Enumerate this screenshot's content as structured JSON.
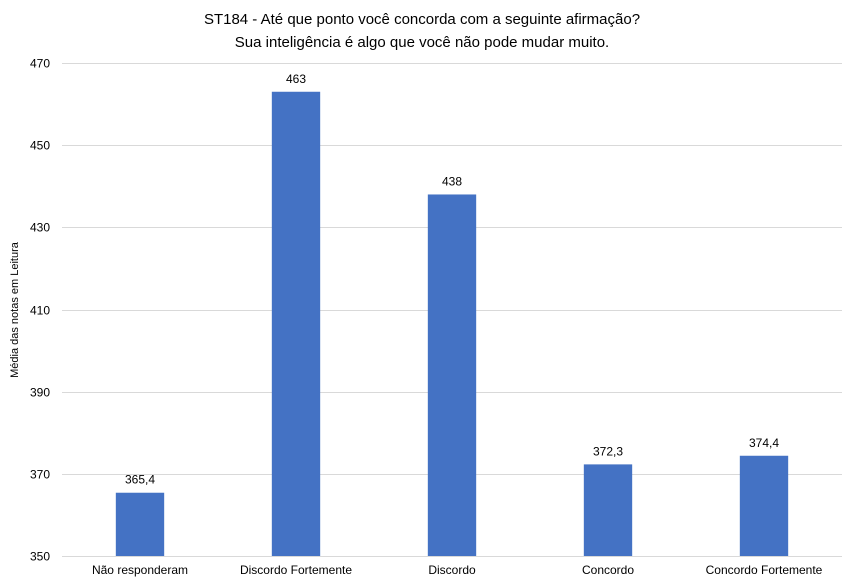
{
  "chart_data": {
    "type": "bar",
    "title": "ST184 - Até que ponto você concorda com a seguinte afirmação?",
    "subtitle": "Sua inteligência é algo que você não pode mudar muito.",
    "xlabel": "",
    "ylabel": "Média das notas em Leitura",
    "categories": [
      "Não responderam",
      "Discordo Fortemente",
      "Discordo",
      "Concordo",
      "Concordo Fortemente"
    ],
    "values": [
      365.4,
      463,
      438,
      372.3,
      374.4
    ],
    "data_labels": [
      "365,4",
      "463",
      "438",
      "372,3",
      "374,4"
    ],
    "ylim": [
      350,
      470
    ],
    "yticks": [
      350,
      370,
      390,
      410,
      430,
      450,
      470
    ],
    "grid": true,
    "legend": "none",
    "bar_color": "#4472C4",
    "grid_color": "#D9D9D9",
    "text_color": "#000000"
  }
}
